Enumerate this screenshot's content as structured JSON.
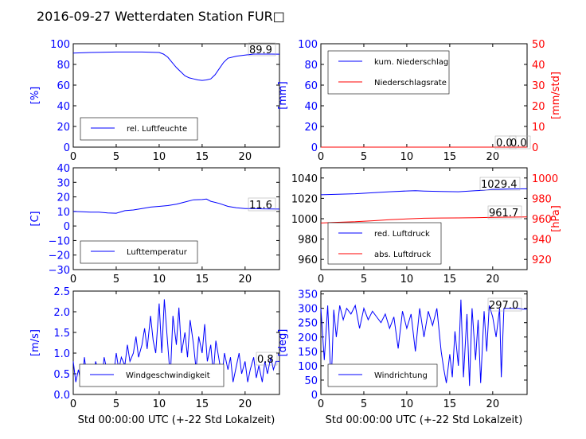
{
  "title": "2016-09-27 Wetterdaten Station FUR□",
  "colors": {
    "blue": "#0000ff",
    "red": "#ff0000",
    "black": "#000000"
  },
  "chart_data": [
    {
      "type": "line",
      "ylabel": "[%]",
      "xlim": [
        0,
        24
      ],
      "ylim": [
        0,
        100
      ],
      "xticks": [
        "0",
        "5",
        "10",
        "15",
        "20"
      ],
      "yticks": [
        "0",
        "20",
        "40",
        "60",
        "80",
        "100"
      ],
      "value_label": "89.9",
      "legend": "lower-left",
      "series": [
        {
          "name": "rel. Luftfeuchte",
          "color": "#0000ff",
          "axis": "left",
          "x": [
            0,
            2,
            5,
            8,
            10,
            10.5,
            11,
            11.5,
            12,
            12.5,
            13,
            13.5,
            14,
            14.5,
            15,
            15.5,
            16,
            16.5,
            17,
            17.5,
            18,
            19,
            20,
            21,
            22,
            23,
            24
          ],
          "y": [
            91,
            91.5,
            92,
            92,
            91.5,
            90,
            87,
            82,
            77,
            73,
            69,
            67,
            66,
            65,
            64.5,
            65,
            66,
            70,
            76,
            82,
            86,
            88,
            89,
            90,
            90,
            90,
            89.9
          ]
        }
      ]
    },
    {
      "type": "line",
      "ylabel": "[mm]",
      "y2label": "[mm/std]",
      "xlim": [
        0,
        24
      ],
      "ylim": [
        0,
        100
      ],
      "y2lim": [
        0,
        50
      ],
      "xticks": [
        "0",
        "5",
        "10",
        "15",
        "20"
      ],
      "yticks": [
        "0",
        "20",
        "40",
        "60",
        "80",
        "100"
      ],
      "y2ticks": [
        "0",
        "10",
        "20",
        "30",
        "40",
        "50"
      ],
      "value_labels": [
        "0.0",
        "0.0"
      ],
      "legend": "upper-left",
      "series": [
        {
          "name": "kum. Niederschlag",
          "color": "#0000ff",
          "axis": "left",
          "x": [
            0,
            24
          ],
          "y": [
            0,
            0
          ]
        },
        {
          "name": "Niederschlagsrate",
          "color": "#ff0000",
          "axis": "right",
          "x": [
            0,
            24
          ],
          "y": [
            0,
            0
          ]
        }
      ]
    },
    {
      "type": "line",
      "ylabel": "[C]",
      "xlim": [
        0,
        24
      ],
      "ylim": [
        -30,
        40
      ],
      "xticks": [
        "0",
        "5",
        "10",
        "15",
        "20"
      ],
      "yticks": [
        "−30",
        "−20",
        "−10",
        "0",
        "10",
        "20",
        "30",
        "40"
      ],
      "value_label": "11.6",
      "legend": "lower-left",
      "series": [
        {
          "name": "Lufttemperatur",
          "color": "#0000ff",
          "axis": "left",
          "x": [
            0,
            1,
            2,
            3,
            4,
            5,
            6,
            7,
            8,
            9,
            10,
            11,
            12,
            13,
            14,
            15,
            15.5,
            16,
            17,
            18,
            19,
            20,
            21,
            22,
            23,
            24
          ],
          "y": [
            10,
            9.8,
            9.5,
            9.5,
            9,
            8.8,
            10.5,
            11,
            12,
            13,
            13.5,
            14,
            15,
            16.5,
            18,
            18.2,
            18.5,
            17,
            15.5,
            13.5,
            12.5,
            12,
            12,
            11.8,
            11.7,
            11.6
          ]
        }
      ]
    },
    {
      "type": "line",
      "y2label": "[hPa]",
      "xlim": [
        0,
        24
      ],
      "ylim": [
        950,
        1050
      ],
      "y2lim": [
        910,
        1010
      ],
      "xticks": [
        "0",
        "5",
        "10",
        "15",
        "20"
      ],
      "yticks": [
        "960",
        "980",
        "1000",
        "1020",
        "1040"
      ],
      "y2ticks": [
        "920",
        "940",
        "960",
        "980",
        "1000"
      ],
      "value_labels": [
        "1029.4",
        "961.7"
      ],
      "legend": "lower-left",
      "series": [
        {
          "name": "red. Luftdruck",
          "color": "#0000ff",
          "axis": "left",
          "x": [
            0,
            2,
            4,
            6,
            8,
            10,
            11,
            12,
            14,
            16,
            18,
            19,
            20,
            22,
            24
          ],
          "y": [
            1023.5,
            1024,
            1024.5,
            1025.5,
            1026.5,
            1027.3,
            1027.5,
            1027.2,
            1026.8,
            1026.5,
            1027.5,
            1028,
            1028.8,
            1029.2,
            1029.4
          ]
        },
        {
          "name": "abs. Luftdruck",
          "color": "#ff0000",
          "axis": "right",
          "x": [
            0,
            2,
            4,
            6,
            8,
            10,
            12,
            14,
            16,
            18,
            20,
            22,
            24
          ],
          "y": [
            955.8,
            956.5,
            957,
            958,
            959,
            959.8,
            960.5,
            960.7,
            960.8,
            961,
            961.4,
            961.6,
            961.7
          ]
        }
      ]
    },
    {
      "type": "line",
      "ylabel": "[m/s]",
      "xlabel": "Std 00:00:00 UTC (+-22 Std Lokalzeit)",
      "xlim": [
        0,
        24
      ],
      "ylim": [
        0,
        2.5
      ],
      "xticks": [
        "0",
        "5",
        "10",
        "15",
        "20"
      ],
      "yticks": [
        "0.0",
        "0.5",
        "1.0",
        "1.5",
        "2.0",
        "2.5"
      ],
      "value_label": "0.8",
      "legend": "lower-center",
      "series": [
        {
          "name": "Windgeschwindigkeit",
          "color": "#0000ff",
          "axis": "left",
          "x": [
            0,
            0.3,
            0.6,
            1,
            1.3,
            1.6,
            2,
            2.3,
            2.6,
            3,
            3.3,
            3.6,
            4,
            4.3,
            4.6,
            5,
            5.3,
            5.6,
            6,
            6.3,
            6.6,
            7,
            7.3,
            7.6,
            8,
            8.3,
            8.6,
            9,
            9.3,
            9.6,
            10,
            10.3,
            10.6,
            11,
            11.3,
            11.6,
            12,
            12.3,
            12.6,
            13,
            13.3,
            13.6,
            14,
            14.3,
            14.6,
            15,
            15.3,
            15.6,
            16,
            16.3,
            16.6,
            17,
            17.3,
            17.6,
            18,
            18.3,
            18.6,
            19,
            19.3,
            19.6,
            20,
            20.3,
            20.6,
            21,
            21.3,
            21.6,
            22,
            22.3,
            22.6,
            23,
            23.3,
            23.6,
            24
          ],
          "y": [
            0.8,
            0.3,
            0.6,
            0.2,
            0.9,
            0.4,
            0.7,
            0.3,
            0.8,
            0.5,
            0.3,
            0.9,
            0.5,
            0.7,
            0.3,
            1.0,
            0.6,
            0.9,
            0.7,
            1.2,
            0.8,
            1.0,
            1.4,
            0.9,
            1.2,
            1.6,
            1.1,
            1.9,
            1.3,
            1.0,
            2.2,
            1.0,
            2.3,
            1.2,
            0.4,
            1.9,
            1.2,
            2.1,
            1.0,
            1.5,
            0.9,
            1.8,
            1.2,
            0.6,
            1.4,
            1.0,
            1.7,
            0.8,
            1.2,
            0.5,
            1.3,
            0.8,
            0.4,
            1.0,
            0.6,
            0.9,
            0.3,
            0.7,
            1.0,
            0.5,
            0.8,
            0.3,
            0.6,
            0.9,
            0.4,
            0.7,
            0.3,
            0.8,
            0.5,
            0.9,
            0.6,
            0.8,
            0.8
          ]
        }
      ]
    },
    {
      "type": "line",
      "ylabel": "[deg]",
      "xlabel": "Std 00:00:00 UTC (+-22 Std Lokalzeit)",
      "xlim": [
        0,
        24
      ],
      "ylim": [
        0,
        360
      ],
      "xticks": [
        "0",
        "5",
        "10",
        "15",
        "20"
      ],
      "yticks": [
        "0",
        "50",
        "100",
        "150",
        "200",
        "250",
        "300",
        "350"
      ],
      "value_label": "297.0",
      "legend": "lower-left",
      "series": [
        {
          "name": "Windrichtung",
          "color": "#0000ff",
          "axis": "left",
          "x": [
            0,
            0.4,
            0.8,
            1.2,
            1.5,
            1.8,
            2.2,
            2.6,
            3,
            3.5,
            4,
            4.5,
            5,
            5.5,
            6,
            6.5,
            7,
            7.5,
            8,
            8.5,
            9,
            9.5,
            10,
            10.5,
            11,
            11.5,
            12,
            12.5,
            13,
            13.5,
            14,
            14.3,
            14.6,
            15,
            15.3,
            15.6,
            16,
            16.3,
            16.6,
            17,
            17.3,
            17.6,
            18,
            18.3,
            18.6,
            19,
            19.3,
            19.6,
            20,
            20.4,
            20.8,
            21,
            21.3,
            21.6,
            22,
            22.5,
            23,
            23.5,
            24
          ],
          "y": [
            300,
            120,
            310,
            30,
            295,
            200,
            310,
            260,
            300,
            280,
            310,
            230,
            300,
            260,
            290,
            270,
            250,
            280,
            230,
            270,
            160,
            290,
            230,
            280,
            150,
            300,
            200,
            290,
            240,
            300,
            150,
            90,
            40,
            140,
            60,
            220,
            100,
            330,
            60,
            280,
            30,
            300,
            120,
            260,
            40,
            290,
            150,
            310,
            270,
            200,
            300,
            60,
            300,
            300,
            300,
            300,
            300,
            297,
            297
          ]
        }
      ]
    }
  ]
}
